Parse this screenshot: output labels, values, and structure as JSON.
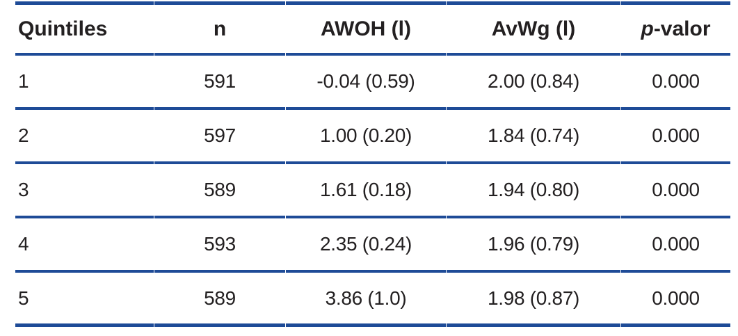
{
  "colors": {
    "line": "#1e4b97",
    "text": "#232021"
  },
  "table": {
    "headers": {
      "quintiles": "Quintiles",
      "n": "n",
      "awoh": "AWOH (l)",
      "avwg": "AvWg (l)",
      "p_italic": "p",
      "p_rest": "-valor"
    },
    "rows": [
      [
        "1",
        "591",
        "-0.04 (0.59)",
        "2.00 (0.84)",
        "0.000"
      ],
      [
        "2",
        "597",
        "1.00 (0.20)",
        "1.84 (0.74)",
        "0.000"
      ],
      [
        "3",
        "589",
        "1.61 (0.18)",
        "1.94 (0.80)",
        "0.000"
      ],
      [
        "4",
        "593",
        "2.35 (0.24)",
        "1.96 (0.79)",
        "0.000"
      ],
      [
        "5",
        "589",
        "3.86 (1.0)",
        "1.98 (0.87)",
        "0.000"
      ]
    ]
  },
  "chart_data": {
    "type": "table",
    "columns": [
      "Quintiles",
      "n",
      "AWOH (l)",
      "AvWg (l)",
      "p-valor"
    ],
    "rows": [
      {
        "quintile": 1,
        "n": 591,
        "awoh_mean": -0.04,
        "awoh_sd": 0.59,
        "avwg_mean": 2.0,
        "avwg_sd": 0.84,
        "p_value": "0.000"
      },
      {
        "quintile": 2,
        "n": 597,
        "awoh_mean": 1.0,
        "awoh_sd": 0.2,
        "avwg_mean": 1.84,
        "avwg_sd": 0.74,
        "p_value": "0.000"
      },
      {
        "quintile": 3,
        "n": 589,
        "awoh_mean": 1.61,
        "awoh_sd": 0.18,
        "avwg_mean": 1.94,
        "avwg_sd": 0.8,
        "p_value": "0.000"
      },
      {
        "quintile": 4,
        "n": 593,
        "awoh_mean": 2.35,
        "awoh_sd": 0.24,
        "avwg_mean": 1.96,
        "avwg_sd": 0.79,
        "p_value": "0.000"
      },
      {
        "quintile": 5,
        "n": 589,
        "awoh_mean": 3.86,
        "awoh_sd": 1.0,
        "avwg_mean": 1.98,
        "avwg_sd": 0.87,
        "p_value": "0.000"
      }
    ]
  }
}
